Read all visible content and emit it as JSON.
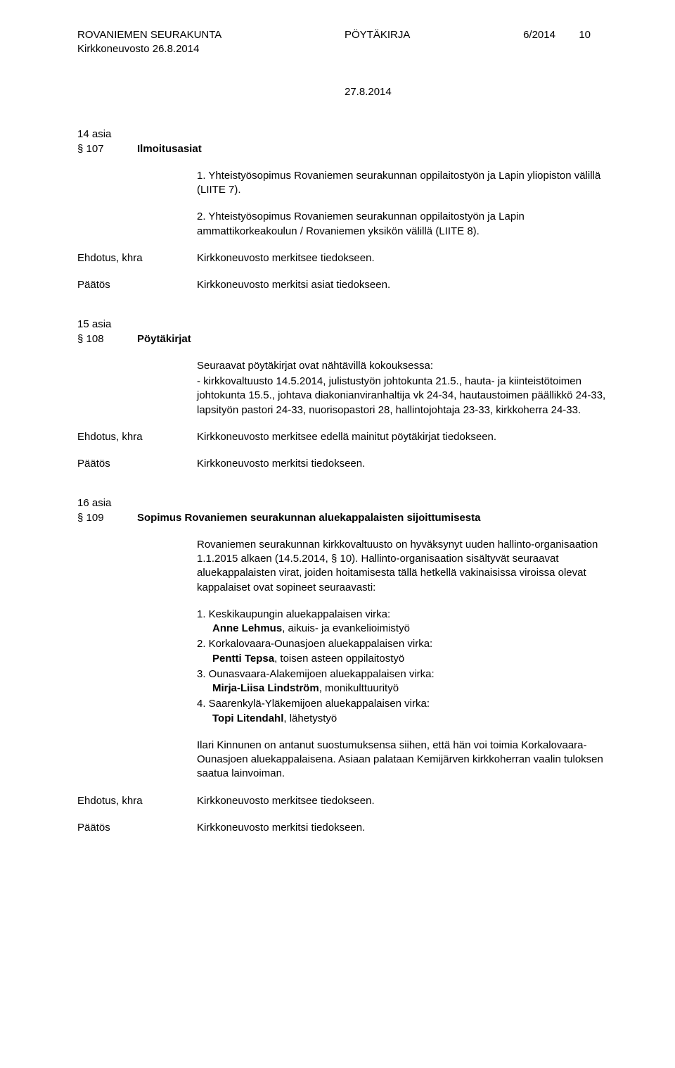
{
  "header": {
    "org": "ROVANIEMEN SEURAKUNTA",
    "sub": "Kirkkoneuvosto 26.8.2014",
    "doc_type": "PÖYTÄKIRJA",
    "doc_num": "6/2014",
    "page_num": "10",
    "date": "27.8.2014"
  },
  "s107": {
    "asia": "14 asia",
    "num": "§ 107",
    "title": "Ilmoitusasiat",
    "p1": "1. Yhteistyösopimus Rovaniemen seurakunnan oppilaitostyön ja Lapin yliopiston välillä (LIITE 7).",
    "p2": "2. Yhteistyösopimus Rovaniemen seurakunnan oppilaitostyön ja Lapin ammattikorkeakoulun / Rovaniemen yksikön välillä (LIITE 8).",
    "ehdotus_label": "Ehdotus, khra",
    "ehdotus": "Kirkkoneuvosto merkitsee tiedokseen.",
    "paatos_label": "Päätös",
    "paatos": "Kirkkoneuvosto merkitsi asiat tiedokseen."
  },
  "s108": {
    "asia": "15 asia",
    "num": "§ 108",
    "title": "Pöytäkirjat",
    "p1": "Seuraavat pöytäkirjat ovat nähtävillä kokouksessa:",
    "p2": "- kirkkovaltuusto 14.5.2014, julistustyön johtokunta 21.5., hauta- ja kiinteistötoimen johtokunta 15.5., johtava diakonianviranhaltija vk 24-34, hautaustoimen päällikkö 24-33, lapsityön pastori 24-33, nuorisopastori 28, hallintojohtaja 23-33, kirkkoherra 24-33.",
    "ehdotus_label": "Ehdotus, khra",
    "ehdotus": "Kirkkoneuvosto merkitsee edellä mainitut pöytäkirjat tiedokseen.",
    "paatos_label": "Päätös",
    "paatos": "Kirkkoneuvosto merkitsi tiedokseen."
  },
  "s109": {
    "asia": "16 asia",
    "num": "§ 109",
    "title": "Sopimus Rovaniemen seurakunnan aluekappalaisten sijoittumisesta",
    "intro": "Rovaniemen seurakunnan kirkkovaltuusto on hyväksynyt uuden hallinto-organisaation 1.1.2015 alkaen (14.5.2014, § 10). Hallinto-organisaation sisältyvät seuraavat aluekappalaisten virat, joiden hoitamisesta tällä hetkellä vakinaisissa viroissa olevat kappalaiset ovat sopineet seuraavasti:",
    "items": [
      {
        "n": "1.",
        "virka": "Keskikaupungin aluekappalaisen virka:",
        "name": "Anne Lehmus",
        "rest": ", aikuis- ja evankelioimistyö"
      },
      {
        "n": "2.",
        "virka": "Korkalovaara-Ounasjoen aluekappalaisen virka:",
        "name": "Pentti Tepsa",
        "rest": ", toisen asteen oppilaitostyö"
      },
      {
        "n": "3.",
        "virka": "Ounasvaara-Alakemijoen aluekappalaisen virka:",
        "name": "Mirja-Liisa Lindström",
        "rest": ", monikulttuurityö"
      },
      {
        "n": "4.",
        "virka": "Saarenkylä-Yläkemijoen aluekappalaisen virka:",
        "name": "Topi Litendahl",
        "rest": ", lähetystyö"
      }
    ],
    "extra": "Ilari Kinnunen on antanut suostumuksensa siihen, että hän voi toimia Korkalovaara-Ounasjoen aluekappalaisena. Asiaan palataan Kemijärven kirkkoherran vaalin tuloksen saatua lainvoiman.",
    "ehdotus_label": "Ehdotus, khra",
    "ehdotus": "Kirkkoneuvosto merkitsee tiedokseen.",
    "paatos_label": "Päätös",
    "paatos": "Kirkkoneuvosto merkitsi tiedokseen."
  }
}
